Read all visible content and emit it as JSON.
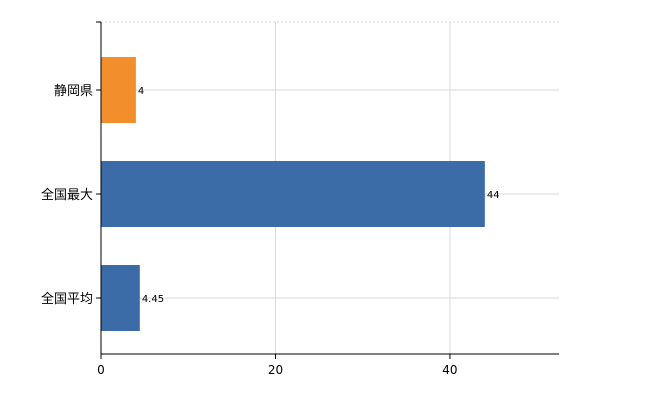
{
  "chart_data": {
    "type": "bar",
    "orientation": "horizontal",
    "categories": [
      "静岡県",
      "全国最大",
      "全国平均"
    ],
    "values": [
      4,
      44,
      4.45
    ],
    "data_labels": [
      "4",
      "44",
      "4.45"
    ],
    "bar_colors": [
      "#F28E2B",
      "#3C6CA8",
      "#3C6CA8"
    ],
    "xlim": [
      0,
      52.5
    ],
    "x_ticks": [
      0,
      20,
      40
    ],
    "x_tick_labels": [
      "0",
      "20",
      "40"
    ],
    "grid": true,
    "legend": "none",
    "title": "",
    "xlabel": "",
    "ylabel": ""
  }
}
